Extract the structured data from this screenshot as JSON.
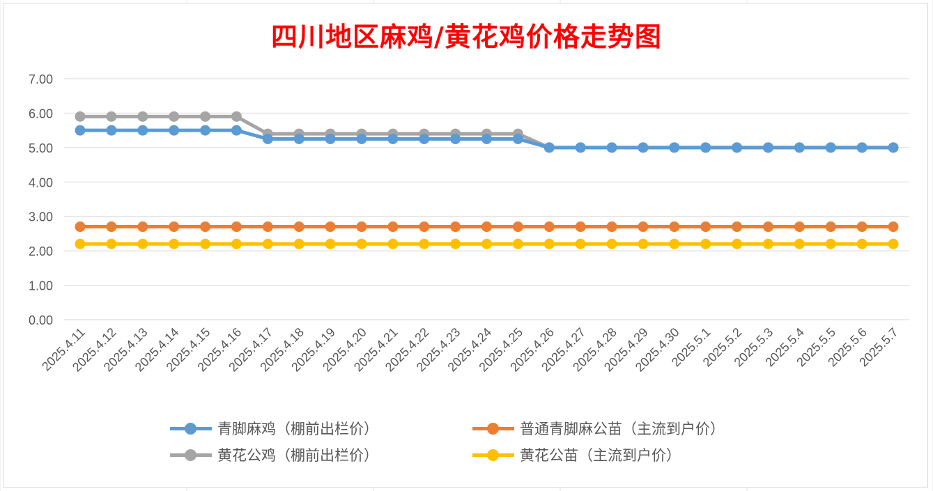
{
  "chart_data": {
    "type": "line",
    "title": "四川地区麻鸡/黄花鸡价格走势图",
    "xlabel": "",
    "ylabel": "",
    "ylim": [
      0,
      7
    ],
    "yticks": [
      "0.00",
      "1.00",
      "2.00",
      "3.00",
      "4.00",
      "5.00",
      "6.00",
      "7.00"
    ],
    "grid": true,
    "legend_position": "bottom",
    "categories": [
      "2025.4.11",
      "2025.4.12",
      "2025.4.13",
      "2025.4.14",
      "2025.4.15",
      "2025.4.16",
      "2025.4.17",
      "2025.4.18",
      "2025.4.19",
      "2025.4.20",
      "2025.4.21",
      "2025.4.22",
      "2025.4.23",
      "2025.4.24",
      "2025.4.25",
      "2025.4.26",
      "2025.4.27",
      "2025.4.28",
      "2025.4.29",
      "2025.4.30",
      "2025.5.1",
      "2025.5.2",
      "2025.5.3",
      "2025.5.4",
      "2025.5.5",
      "2025.5.6",
      "2025.5.7"
    ],
    "series": [
      {
        "name": "青脚麻鸡（棚前出栏价）",
        "color": "#5b9bd5",
        "values": [
          5.5,
          5.5,
          5.5,
          5.5,
          5.5,
          5.5,
          5.25,
          5.25,
          5.25,
          5.25,
          5.25,
          5.25,
          5.25,
          5.25,
          5.25,
          5.0,
          5.0,
          5.0,
          5.0,
          5.0,
          5.0,
          5.0,
          5.0,
          5.0,
          5.0,
          5.0,
          5.0
        ]
      },
      {
        "name": "普通青脚麻公苗（主流到户价）",
        "color": "#ed7d31",
        "values": [
          2.7,
          2.7,
          2.7,
          2.7,
          2.7,
          2.7,
          2.7,
          2.7,
          2.7,
          2.7,
          2.7,
          2.7,
          2.7,
          2.7,
          2.7,
          2.7,
          2.7,
          2.7,
          2.7,
          2.7,
          2.7,
          2.7,
          2.7,
          2.7,
          2.7,
          2.7,
          2.7
        ]
      },
      {
        "name": "黄花公鸡（棚前出栏价）",
        "color": "#a5a5a5",
        "values": [
          5.9,
          5.9,
          5.9,
          5.9,
          5.9,
          5.9,
          5.4,
          5.4,
          5.4,
          5.4,
          5.4,
          5.4,
          5.4,
          5.4,
          5.4,
          5.0,
          5.0,
          5.0,
          5.0,
          5.0,
          5.0,
          5.0,
          5.0,
          5.0,
          5.0,
          5.0,
          5.0
        ]
      },
      {
        "name": "黄花公苗（主流到户价）",
        "color": "#ffc000",
        "values": [
          2.2,
          2.2,
          2.2,
          2.2,
          2.2,
          2.2,
          2.2,
          2.2,
          2.2,
          2.2,
          2.2,
          2.2,
          2.2,
          2.2,
          2.2,
          2.2,
          2.2,
          2.2,
          2.2,
          2.2,
          2.2,
          2.2,
          2.2,
          2.2,
          2.2,
          2.2,
          2.2
        ]
      }
    ]
  }
}
